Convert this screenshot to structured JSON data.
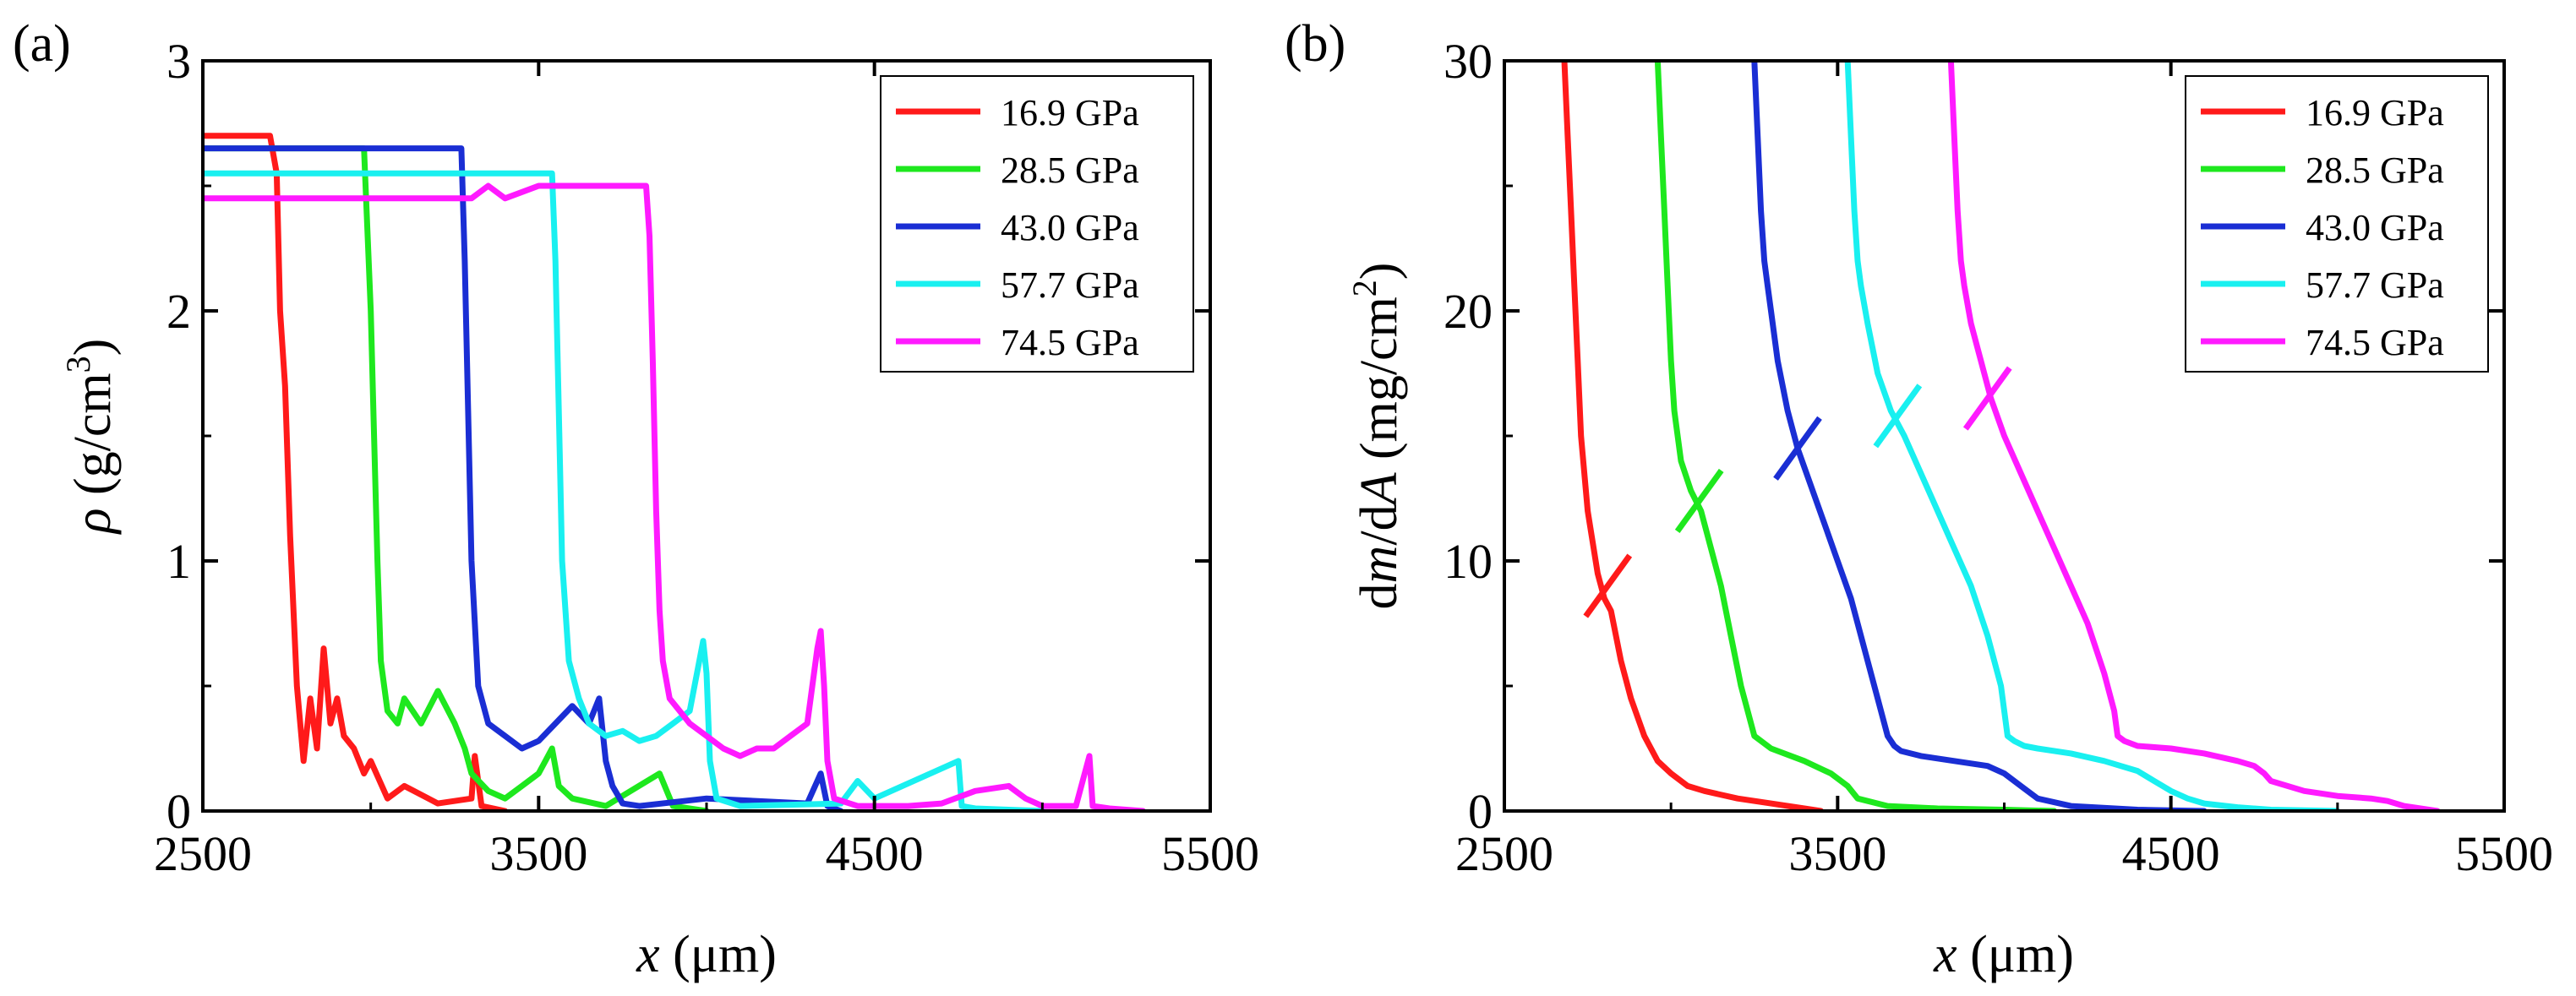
{
  "chart_data": [
    {
      "type": "line",
      "panel_label": "(a)",
      "xlabel_var": "x",
      "xlabel_unit": " (μm)",
      "ylabel_var": "ρ",
      "ylabel_unit_pre": " (g/cm",
      "ylabel_unit_sup": "3",
      "ylabel_unit_post": ")",
      "xlim": [
        2500,
        5500
      ],
      "ylim": [
        0,
        3
      ],
      "xticks": [
        2500,
        3500,
        4500,
        5500
      ],
      "yticks": [
        0,
        1,
        2,
        3
      ],
      "xtick_labels": [
        "2500",
        "3500",
        "4500",
        "5500"
      ],
      "ytick_labels": [
        "0",
        "1",
        "2",
        "3"
      ],
      "legend_position": "top-right",
      "series": [
        {
          "name": "16.9 GPa",
          "color": "#ff1a1a",
          "x": [
            2500,
            2700,
            2720,
            2730,
            2745,
            2760,
            2780,
            2800,
            2820,
            2840,
            2860,
            2880,
            2900,
            2920,
            2950,
            2980,
            3000,
            3050,
            3100,
            3200,
            3300,
            3310,
            3330,
            3400
          ],
          "y": [
            2.7,
            2.7,
            2.55,
            2.0,
            1.7,
            1.1,
            0.5,
            0.2,
            0.45,
            0.25,
            0.65,
            0.35,
            0.45,
            0.3,
            0.25,
            0.15,
            0.2,
            0.05,
            0.1,
            0.03,
            0.05,
            0.22,
            0.02,
            0.0
          ]
        },
        {
          "name": "28.5 GPa",
          "color": "#1ee81e",
          "x": [
            2500,
            2980,
            3000,
            3010,
            3020,
            3030,
            3050,
            3080,
            3100,
            3150,
            3200,
            3250,
            3280,
            3300,
            3350,
            3400,
            3450,
            3500,
            3520,
            3540,
            3560,
            3600,
            3700,
            3860,
            3900,
            4000
          ],
          "y": [
            2.65,
            2.65,
            2.0,
            1.5,
            1.0,
            0.6,
            0.4,
            0.35,
            0.45,
            0.35,
            0.48,
            0.35,
            0.25,
            0.15,
            0.08,
            0.05,
            0.1,
            0.15,
            0.2,
            0.25,
            0.1,
            0.05,
            0.02,
            0.15,
            0.02,
            0.0
          ]
        },
        {
          "name": "43.0 GPa",
          "color": "#1a2ed4",
          "x": [
            2500,
            3270,
            3280,
            3290,
            3300,
            3320,
            3350,
            3400,
            3450,
            3500,
            3550,
            3600,
            3650,
            3680,
            3700,
            3720,
            3750,
            3800,
            4000,
            4300,
            4340,
            4360,
            4400
          ],
          "y": [
            2.65,
            2.65,
            2.2,
            1.6,
            1.0,
            0.5,
            0.35,
            0.3,
            0.25,
            0.28,
            0.35,
            0.42,
            0.35,
            0.45,
            0.2,
            0.1,
            0.03,
            0.02,
            0.05,
            0.03,
            0.15,
            0.02,
            0.0
          ]
        },
        {
          "name": "57.7 GPa",
          "color": "#19f0f0",
          "x": [
            2500,
            3540,
            3550,
            3560,
            3570,
            3590,
            3620,
            3650,
            3700,
            3750,
            3800,
            3850,
            3900,
            3950,
            3990,
            4000,
            4010,
            4030,
            4100,
            4400,
            4450,
            4500,
            4750,
            4760,
            4800,
            5000
          ],
          "y": [
            2.55,
            2.55,
            2.2,
            1.6,
            1.0,
            0.6,
            0.45,
            0.35,
            0.3,
            0.32,
            0.28,
            0.3,
            0.35,
            0.4,
            0.68,
            0.55,
            0.2,
            0.05,
            0.02,
            0.03,
            0.12,
            0.05,
            0.2,
            0.02,
            0.01,
            0.0
          ]
        },
        {
          "name": "74.5 GPa",
          "color": "#ff1aff",
          "x": [
            2500,
            3300,
            3350,
            3400,
            3500,
            3700,
            3820,
            3830,
            3840,
            3850,
            3860,
            3870,
            3890,
            3920,
            3950,
            4000,
            4050,
            4100,
            4150,
            4200,
            4250,
            4300,
            4330,
            4340,
            4350,
            4360,
            4380,
            4450,
            4500,
            4600,
            4700,
            4800,
            4900,
            4950,
            5000,
            5100,
            5140,
            5150,
            5200,
            5300
          ],
          "y": [
            2.45,
            2.45,
            2.5,
            2.45,
            2.5,
            2.5,
            2.5,
            2.3,
            1.8,
            1.2,
            0.8,
            0.6,
            0.45,
            0.4,
            0.35,
            0.3,
            0.25,
            0.22,
            0.25,
            0.25,
            0.3,
            0.35,
            0.65,
            0.72,
            0.5,
            0.2,
            0.05,
            0.02,
            0.02,
            0.02,
            0.03,
            0.08,
            0.1,
            0.05,
            0.02,
            0.02,
            0.22,
            0.02,
            0.01,
            0.0
          ]
        }
      ]
    },
    {
      "type": "line",
      "panel_label": "(b)",
      "xlabel_var": "x",
      "xlabel_unit": " (μm)",
      "ylabel_d1": "d",
      "ylabel_m": "m",
      "ylabel_d2": "/d",
      "ylabel_A": "A",
      "ylabel_unit_pre": " (mg/cm",
      "ylabel_unit_sup": "2",
      "ylabel_unit_post": ")",
      "xlim": [
        2500,
        5500
      ],
      "ylim": [
        0,
        30
      ],
      "xticks": [
        2500,
        3500,
        4500,
        5500
      ],
      "yticks": [
        0,
        10,
        20,
        30
      ],
      "xtick_labels": [
        "2500",
        "3500",
        "4500",
        "5500"
      ],
      "ytick_labels": [
        "0",
        "10",
        "20",
        "30"
      ],
      "legend_position": "top-right",
      "series": [
        {
          "name": "16.9 GPa",
          "color": "#ff1a1a",
          "x": [
            2680,
            2690,
            2700,
            2710,
            2720,
            2730,
            2750,
            2780,
            2800,
            2820,
            2850,
            2880,
            2920,
            2960,
            3000,
            3050,
            3100,
            3200,
            3300,
            3400,
            3450
          ],
          "y": [
            30,
            27,
            24,
            21,
            18,
            15,
            12,
            9.5,
            8.5,
            8,
            6,
            4.5,
            3,
            2,
            1.5,
            1,
            0.8,
            0.5,
            0.3,
            0.1,
            0.0
          ],
          "cross_marker": {
            "x": 2810,
            "y": 9.0
          }
        },
        {
          "name": "28.5 GPa",
          "color": "#1ee81e",
          "x": [
            2960,
            2970,
            2980,
            2990,
            3000,
            3010,
            3030,
            3060,
            3090,
            3120,
            3150,
            3180,
            3210,
            3250,
            3300,
            3400,
            3480,
            3530,
            3560,
            3650,
            3800,
            4000,
            4150
          ],
          "y": [
            30,
            27,
            24,
            21,
            18,
            16,
            14,
            12.8,
            12,
            10.5,
            9,
            7,
            5,
            3,
            2.5,
            2.0,
            1.5,
            1.0,
            0.5,
            0.2,
            0.1,
            0.05,
            0.0
          ],
          "cross_marker": {
            "x": 3085,
            "y": 12.4
          }
        },
        {
          "name": "43.0 GPa",
          "color": "#1a2ed4",
          "x": [
            3250,
            3260,
            3270,
            3280,
            3290,
            3300,
            3320,
            3350,
            3380,
            3420,
            3460,
            3500,
            3540,
            3580,
            3620,
            3650,
            3670,
            3690,
            3750,
            3850,
            3950,
            4000,
            4050,
            4100,
            4200,
            4400,
            4600
          ],
          "y": [
            30,
            27,
            24,
            22,
            21,
            20,
            18,
            16,
            14.5,
            13,
            11.5,
            10,
            8.5,
            6.5,
            4.5,
            3,
            2.6,
            2.4,
            2.2,
            2.0,
            1.8,
            1.5,
            1.0,
            0.5,
            0.2,
            0.05,
            0.0
          ],
          "cross_marker": {
            "x": 3380,
            "y": 14.5
          }
        },
        {
          "name": "57.7 GPa",
          "color": "#19f0f0",
          "x": [
            3530,
            3540,
            3550,
            3560,
            3570,
            3590,
            3620,
            3660,
            3700,
            3750,
            3800,
            3850,
            3900,
            3950,
            3990,
            4010,
            4030,
            4060,
            4100,
            4200,
            4300,
            4400,
            4450,
            4500,
            4550,
            4600,
            4700,
            4800,
            5000
          ],
          "y": [
            30,
            27,
            24,
            22,
            21,
            19.5,
            17.5,
            16,
            15,
            13.5,
            12,
            10.5,
            9,
            7,
            5,
            3,
            2.8,
            2.6,
            2.5,
            2.3,
            2.0,
            1.6,
            1.2,
            0.8,
            0.5,
            0.3,
            0.15,
            0.05,
            0.0
          ],
          "cross_marker": {
            "x": 3680,
            "y": 15.8
          }
        },
        {
          "name": "74.5 GPa",
          "color": "#ff1aff",
          "x": [
            3840,
            3850,
            3860,
            3870,
            3880,
            3900,
            3930,
            3960,
            4000,
            4050,
            4100,
            4150,
            4200,
            4250,
            4300,
            4330,
            4340,
            4360,
            4400,
            4500,
            4600,
            4700,
            4750,
            4780,
            4800,
            4900,
            5000,
            5100,
            5150,
            5200,
            5300
          ],
          "y": [
            30,
            27,
            24,
            22,
            21,
            19.5,
            18,
            16.5,
            15,
            13.5,
            12,
            10.5,
            9,
            7.5,
            5.5,
            4,
            3,
            2.8,
            2.6,
            2.5,
            2.3,
            2.0,
            1.8,
            1.5,
            1.2,
            0.8,
            0.6,
            0.5,
            0.4,
            0.2,
            0.0
          ],
          "cross_marker": {
            "x": 3950,
            "y": 16.5
          }
        }
      ]
    }
  ]
}
